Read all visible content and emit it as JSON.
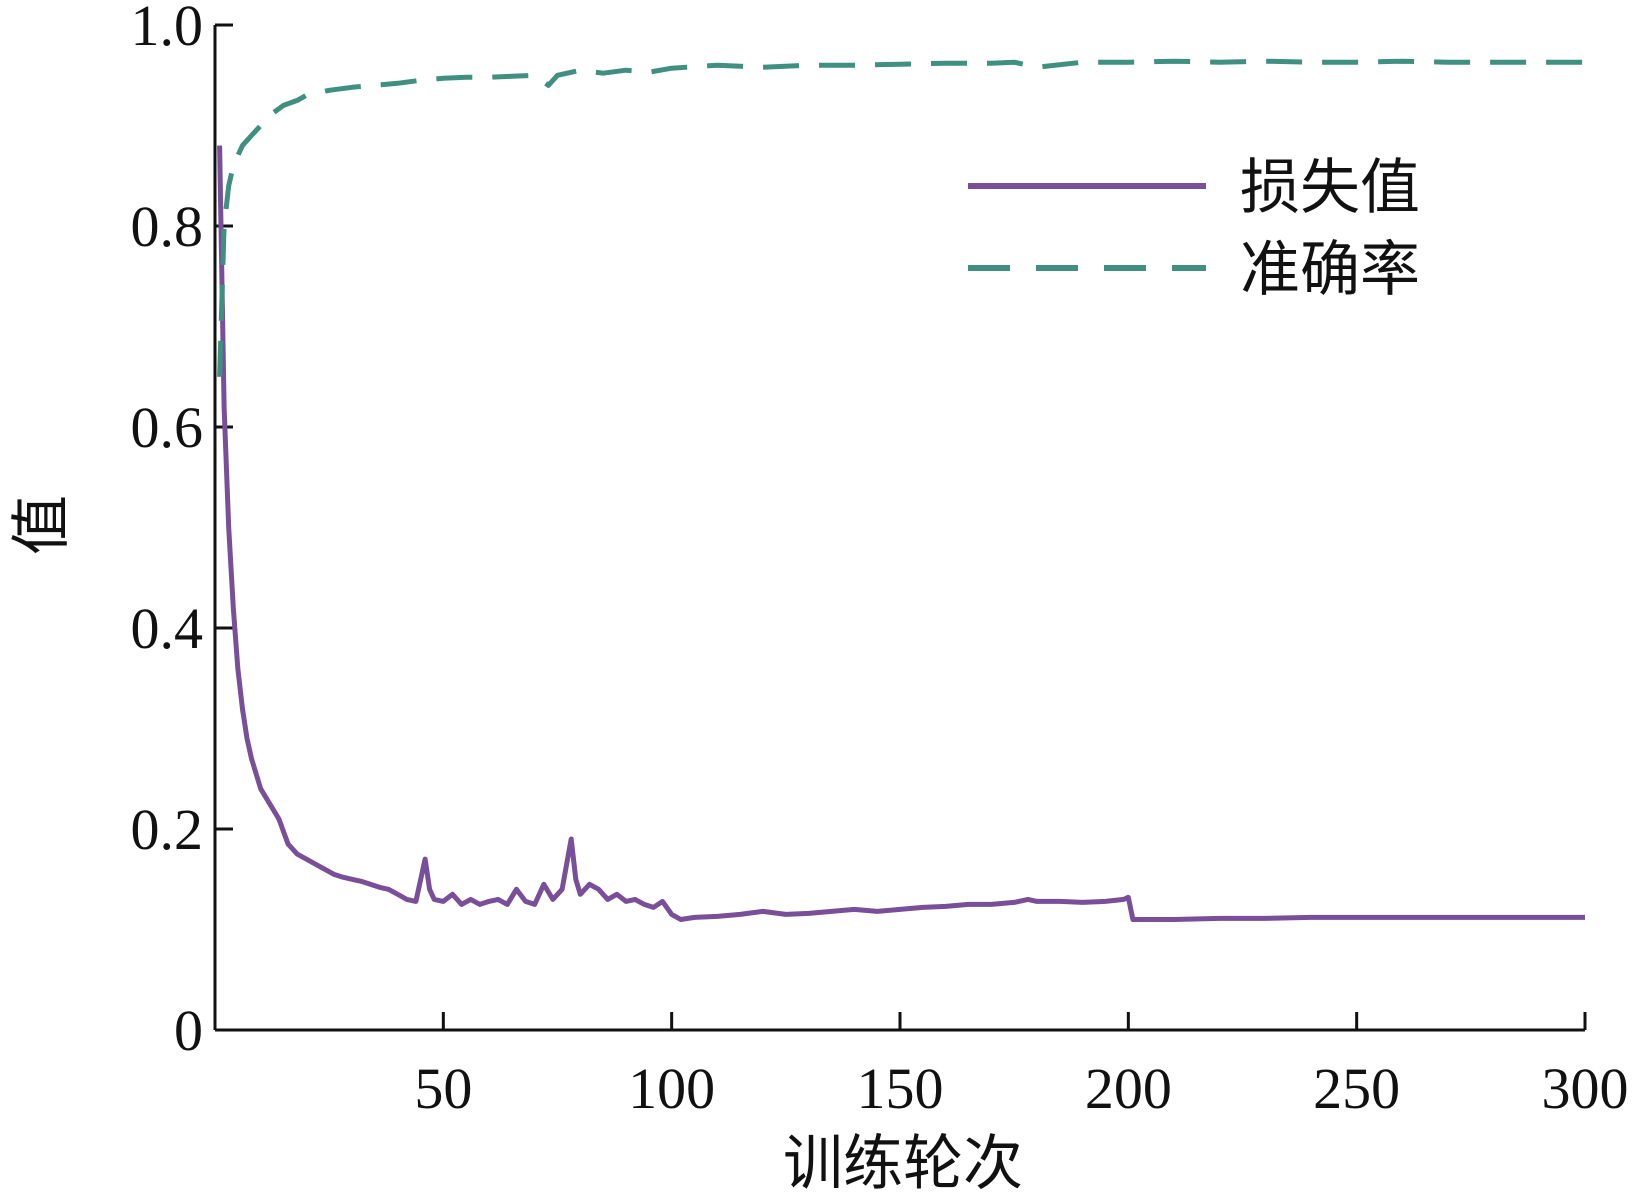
{
  "chart_data": {
    "type": "line",
    "title": "",
    "xlabel": "训练轮次",
    "ylabel": "值",
    "xlim": [
      0,
      300
    ],
    "ylim": [
      0,
      1.0
    ],
    "xticks": [
      50,
      100,
      150,
      200,
      250,
      300
    ],
    "yticks": [
      0,
      0.2,
      0.4,
      0.6,
      0.8,
      1.0
    ],
    "xtick_labels": [
      "50",
      "100",
      "150",
      "200",
      "250",
      "300"
    ],
    "ytick_labels": [
      "0",
      "0.2",
      "0.4",
      "0.6",
      "0.8",
      "1.0"
    ],
    "grid": false,
    "legend_position": "upper-right",
    "series": [
      {
        "name": "损失值",
        "color": "#7a4f9a",
        "style": "solid",
        "x": [
          1,
          2,
          3,
          4,
          5,
          6,
          7,
          8,
          10,
          12,
          14,
          16,
          18,
          20,
          22,
          24,
          26,
          28,
          30,
          32,
          34,
          36,
          38,
          40,
          42,
          44,
          46,
          47,
          48,
          50,
          52,
          54,
          56,
          58,
          60,
          62,
          64,
          66,
          68,
          70,
          72,
          74,
          76,
          78,
          79,
          80,
          82,
          84,
          86,
          88,
          90,
          92,
          94,
          96,
          98,
          100,
          102,
          105,
          110,
          115,
          120,
          125,
          130,
          135,
          140,
          145,
          150,
          155,
          160,
          165,
          170,
          175,
          178,
          180,
          185,
          190,
          195,
          199,
          200,
          201,
          210,
          220,
          230,
          240,
          250,
          260,
          270,
          280,
          290,
          300
        ],
        "values": [
          0.88,
          0.62,
          0.5,
          0.42,
          0.36,
          0.32,
          0.29,
          0.27,
          0.24,
          0.225,
          0.21,
          0.185,
          0.175,
          0.17,
          0.165,
          0.16,
          0.155,
          0.152,
          0.15,
          0.148,
          0.145,
          0.142,
          0.14,
          0.135,
          0.13,
          0.128,
          0.17,
          0.14,
          0.13,
          0.128,
          0.135,
          0.125,
          0.13,
          0.125,
          0.128,
          0.13,
          0.125,
          0.14,
          0.128,
          0.125,
          0.145,
          0.13,
          0.14,
          0.19,
          0.15,
          0.135,
          0.145,
          0.14,
          0.13,
          0.135,
          0.128,
          0.13,
          0.125,
          0.122,
          0.128,
          0.115,
          0.11,
          0.112,
          0.113,
          0.115,
          0.118,
          0.115,
          0.116,
          0.118,
          0.12,
          0.118,
          0.12,
          0.122,
          0.123,
          0.125,
          0.125,
          0.127,
          0.13,
          0.128,
          0.128,
          0.127,
          0.128,
          0.13,
          0.132,
          0.11,
          0.11,
          0.111,
          0.111,
          0.112,
          0.112,
          0.112,
          0.112,
          0.112,
          0.112,
          0.112
        ]
      },
      {
        "name": "准确率",
        "color": "#3f9080",
        "style": "dashed",
        "x": [
          1,
          2,
          3,
          4,
          6,
          8,
          10,
          12,
          15,
          18,
          20,
          25,
          30,
          35,
          40,
          45,
          50,
          55,
          60,
          65,
          70,
          73,
          75,
          80,
          85,
          90,
          95,
          100,
          110,
          120,
          130,
          140,
          150,
          160,
          170,
          175,
          180,
          190,
          200,
          210,
          220,
          230,
          240,
          250,
          260,
          270,
          280,
          290,
          300
        ],
        "values": [
          0.65,
          0.8,
          0.84,
          0.86,
          0.88,
          0.89,
          0.9,
          0.91,
          0.92,
          0.925,
          0.93,
          0.935,
          0.938,
          0.94,
          0.942,
          0.945,
          0.947,
          0.948,
          0.948,
          0.949,
          0.95,
          0.94,
          0.95,
          0.955,
          0.952,
          0.955,
          0.953,
          0.957,
          0.96,
          0.958,
          0.96,
          0.96,
          0.961,
          0.962,
          0.962,
          0.963,
          0.958,
          0.963,
          0.963,
          0.964,
          0.963,
          0.964,
          0.963,
          0.963,
          0.964,
          0.963,
          0.963,
          0.963,
          0.963
        ]
      }
    ]
  }
}
